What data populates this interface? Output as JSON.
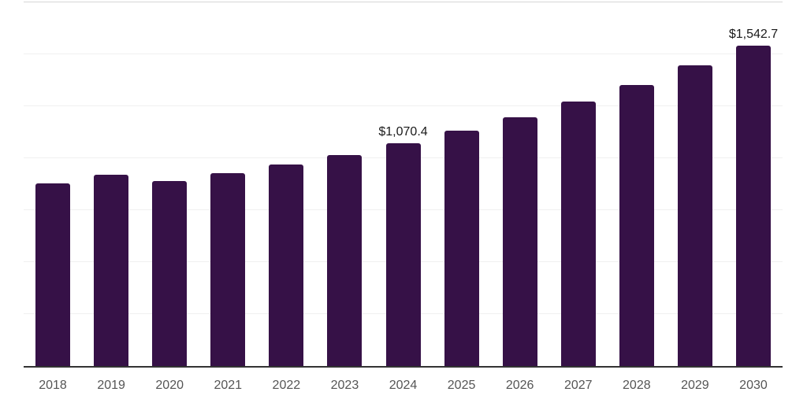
{
  "chart_data": {
    "type": "bar",
    "title": "",
    "xlabel": "",
    "ylabel": "",
    "ylim": [
      0,
      1750
    ],
    "grid_step": 250,
    "grid": true,
    "legend_position": "none",
    "categories": [
      "2018",
      "2019",
      "2020",
      "2021",
      "2022",
      "2023",
      "2024",
      "2025",
      "2026",
      "2027",
      "2028",
      "2029",
      "2030"
    ],
    "values": [
      878,
      920,
      890,
      928,
      968,
      1017,
      1070.4,
      1131,
      1196,
      1274,
      1354,
      1448,
      1542.7
    ],
    "annotations": [
      {
        "category": "2024",
        "text": "$1,070.4"
      },
      {
        "category": "2030",
        "text": "$1,542.7"
      }
    ]
  },
  "colors": {
    "background": "#ffffff",
    "bar": "#361147",
    "gridline": "#f0f0f0",
    "top_gridline": "#d6d6d6",
    "axis": "#333333",
    "tick_text": "#555555",
    "label_text": "#1a1a1a"
  }
}
